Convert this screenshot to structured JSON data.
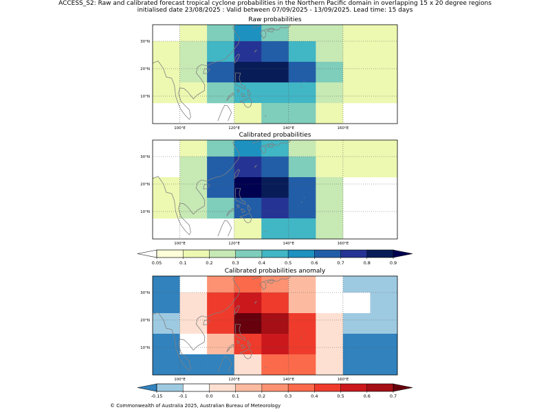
{
  "header": {
    "title_line1": "ACCESS_S2: Raw and calibrated forecast tropical cyclone probabilities in the Northern Pacific domain in overlapping 15 x 20 degree regions",
    "title_line2": "initialised date 23/08/2025 :  Valid between 07/09/2025 - 13/09/2025. Lead time: 15 days"
  },
  "footer": {
    "credit": "© Commonwealth of Australia 2025, Australian Bureau of Meteorology"
  },
  "chart_data": [
    {
      "type": "heatmap",
      "title": "Raw probabilities",
      "xlim": [
        90,
        180
      ],
      "ylim": [
        0,
        36
      ],
      "x_ticks": [
        100,
        120,
        140,
        160
      ],
      "x_tick_labels": [
        "100°E",
        "120°E",
        "140°E",
        "160°E"
      ],
      "y_ticks": [
        10,
        20,
        30
      ],
      "y_tick_labels": [
        "10°N",
        "20°N",
        "30°N"
      ],
      "grid": true,
      "row_bands": [
        [
          30,
          36
        ],
        [
          22.5,
          30
        ],
        [
          15,
          22.5
        ],
        [
          7.5,
          15
        ],
        [
          0,
          7.5
        ]
      ],
      "col_edges": [
        90,
        100,
        110,
        120,
        130,
        140,
        150,
        160,
        170,
        180
      ],
      "values": [
        [
          null,
          0.15,
          0.35,
          0.5,
          0.35,
          0.25,
          0.25,
          0.15,
          0.1
        ],
        [
          0.1,
          0.25,
          0.45,
          0.75,
          0.65,
          0.4,
          0.25,
          0.15,
          0.15
        ],
        [
          0.15,
          0.25,
          0.65,
          0.85,
          0.85,
          0.65,
          0.35,
          0.15,
          0.15
        ],
        [
          0.1,
          0.15,
          0.3,
          0.45,
          0.45,
          0.45,
          0.25,
          0.1,
          0.1
        ],
        [
          null,
          null,
          null,
          0.15,
          0.3,
          0.3,
          0.15,
          null,
          null
        ]
      ]
    },
    {
      "type": "heatmap",
      "title": "Calibrated probabilities",
      "xlim": [
        90,
        180
      ],
      "ylim": [
        0,
        36
      ],
      "x_ticks": [
        100,
        120,
        140,
        160
      ],
      "x_tick_labels": [
        "100°E",
        "120°E",
        "140°E",
        "160°E"
      ],
      "y_ticks": [
        10,
        20,
        30
      ],
      "y_tick_labels": [
        "10°N",
        "20°N",
        "30°N"
      ],
      "grid": true,
      "row_bands": [
        [
          30,
          36
        ],
        [
          22.5,
          30
        ],
        [
          15,
          22.5
        ],
        [
          7.5,
          15
        ],
        [
          0,
          7.5
        ]
      ],
      "col_edges": [
        90,
        100,
        110,
        120,
        130,
        140,
        150,
        160,
        170,
        180
      ],
      "values": [
        [
          null,
          0.15,
          0.35,
          0.55,
          0.4,
          0.25,
          0.15,
          0.1,
          0.1
        ],
        [
          null,
          0.25,
          0.65,
          0.75,
          0.65,
          0.3,
          0.15,
          0.15,
          0.1
        ],
        [
          0.1,
          0.25,
          0.65,
          0.95,
          0.85,
          0.65,
          0.25,
          null,
          null
        ],
        [
          0.1,
          0.25,
          0.3,
          0.65,
          0.75,
          0.65,
          0.25,
          null,
          null
        ],
        [
          null,
          null,
          null,
          0.1,
          0.45,
          0.45,
          0.25,
          null,
          null
        ]
      ]
    },
    {
      "type": "heatmap",
      "title": "Calibrated probabilities anomaly",
      "xlim": [
        90,
        180
      ],
      "ylim": [
        0,
        36
      ],
      "x_ticks": [
        100,
        120,
        140,
        160
      ],
      "x_tick_labels": [
        "100°E",
        "120°E",
        "140°E",
        "160°E"
      ],
      "y_ticks": [
        10,
        20,
        30
      ],
      "y_tick_labels": [
        "10°N",
        "20°N",
        "30°N"
      ],
      "grid": true,
      "row_bands": [
        [
          30,
          36
        ],
        [
          22.5,
          30
        ],
        [
          15,
          22.5
        ],
        [
          7.5,
          15
        ],
        [
          0,
          7.5
        ]
      ],
      "col_edges": [
        90,
        100,
        110,
        120,
        130,
        140,
        150,
        160,
        170,
        180
      ],
      "values": [
        [
          -0.2,
          -0.05,
          0.25,
          0.35,
          0.25,
          0.15,
          -0.05,
          -0.15,
          -0.15
        ],
        [
          -0.2,
          0.05,
          0.45,
          0.55,
          0.45,
          0.15,
          -0.05,
          -0.05,
          -0.15
        ],
        [
          -0.15,
          0.05,
          0.45,
          0.75,
          0.65,
          0.45,
          0.05,
          -0.15,
          -0.15
        ],
        [
          -0.2,
          -0.05,
          0.15,
          0.45,
          0.55,
          0.45,
          0.05,
          -0.2,
          -0.2
        ],
        [
          -0.2,
          -0.2,
          -0.2,
          0.05,
          0.35,
          0.35,
          0.05,
          -0.2,
          -0.2
        ]
      ]
    }
  ],
  "colorbars": [
    {
      "type": "probability",
      "levels": [
        0.05,
        0.1,
        0.2,
        0.3,
        0.4,
        0.5,
        0.6,
        0.7,
        0.8,
        0.9
      ],
      "tick_labels": [
        "0.05",
        "0.1",
        "0.2",
        "0.3",
        "0.4",
        "0.5",
        "0.6",
        "0.7",
        "0.8",
        "0.9"
      ],
      "colors": [
        "#ffffd9",
        "#edf8b1",
        "#c7e9b4",
        "#7fcdbb",
        "#41b6c4",
        "#1d91c0",
        "#225ea8",
        "#253494",
        "#081d58"
      ],
      "under_color": "#ffffff",
      "over_color": "#000050"
    },
    {
      "type": "anomaly",
      "levels": [
        -0.15,
        -0.1,
        0.0,
        0.1,
        0.2,
        0.3,
        0.4,
        0.5,
        0.6,
        0.7
      ],
      "tick_labels": [
        "-0.15",
        "-0.1",
        "0.0",
        "0.1",
        "0.2",
        "0.3",
        "0.4",
        "0.5",
        "0.6",
        "0.7"
      ],
      "colors": [
        "#9ecae1",
        "#ffffff",
        "#fee0d2",
        "#fcbba1",
        "#fc9272",
        "#fb6a4a",
        "#ef3b2c",
        "#cb181d",
        "#a50f15"
      ],
      "under_color": "#3182bd",
      "over_color": "#67000d"
    }
  ],
  "colors": {
    "coastline": "#808080",
    "grid": "#555555",
    "frame": "#000000"
  }
}
